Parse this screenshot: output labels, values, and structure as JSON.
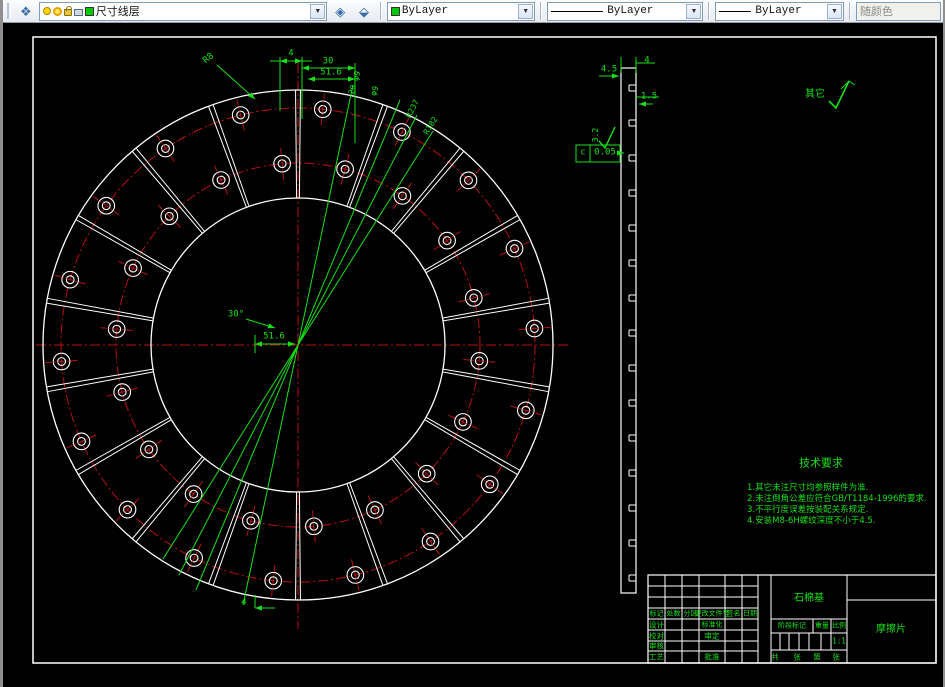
{
  "toolbar": {
    "layer_combo": {
      "value": "尺寸线层"
    },
    "color_combo": {
      "value": "ByLayer"
    },
    "linetype_combo": {
      "value": "ByLayer"
    },
    "lineweight_combo": {
      "value": "ByLayer"
    },
    "plotstyle_combo": {
      "value": "随颜色"
    }
  },
  "drawing": {
    "dimensions": {
      "top_gap": "4",
      "top_span": "30",
      "top_inner": "51.6",
      "leader_radius": "R8",
      "angle": "30°",
      "center_width": "51.6",
      "bottom_gap": "4",
      "fan_label_1": "20-φ9",
      "fan_label_2": "φ9",
      "fan_label_3": "R237",
      "fan_label_4": "R182",
      "side_top": "4.5",
      "side_top2": "4",
      "side_right": "1.5",
      "side_rough": "3.2",
      "datum_letter": "c",
      "datum_value": "0.05"
    },
    "surface_note": {
      "label": "其它"
    },
    "tech_requirements": {
      "title": "技术要求",
      "items": [
        "1.其它未注尺寸均参照样件为准.",
        "2.未注倒角公差应符合GB/T1184-1996的要求.",
        "3.不平行度误差按装配关系规定.",
        "4.安装M8-6H螺纹深度不小于4.5."
      ]
    },
    "title_block": {
      "part_name": "摩擦片",
      "material": "石棉基",
      "header": [
        "标记",
        "处数",
        "分区",
        "更改文件号",
        "签名",
        "日期"
      ],
      "roles": [
        "设计",
        "校对",
        "审核",
        "工艺"
      ],
      "approvals": [
        "标准化",
        "审定",
        "批准"
      ],
      "fields": [
        "阶段标记",
        "重量",
        "比例"
      ],
      "scale": "1:1",
      "sheet": [
        "共",
        "张",
        "第",
        "张"
      ]
    }
  },
  "colors": {
    "line": "#ffffff",
    "center": "#bb1010",
    "dim": "#17e017"
  }
}
